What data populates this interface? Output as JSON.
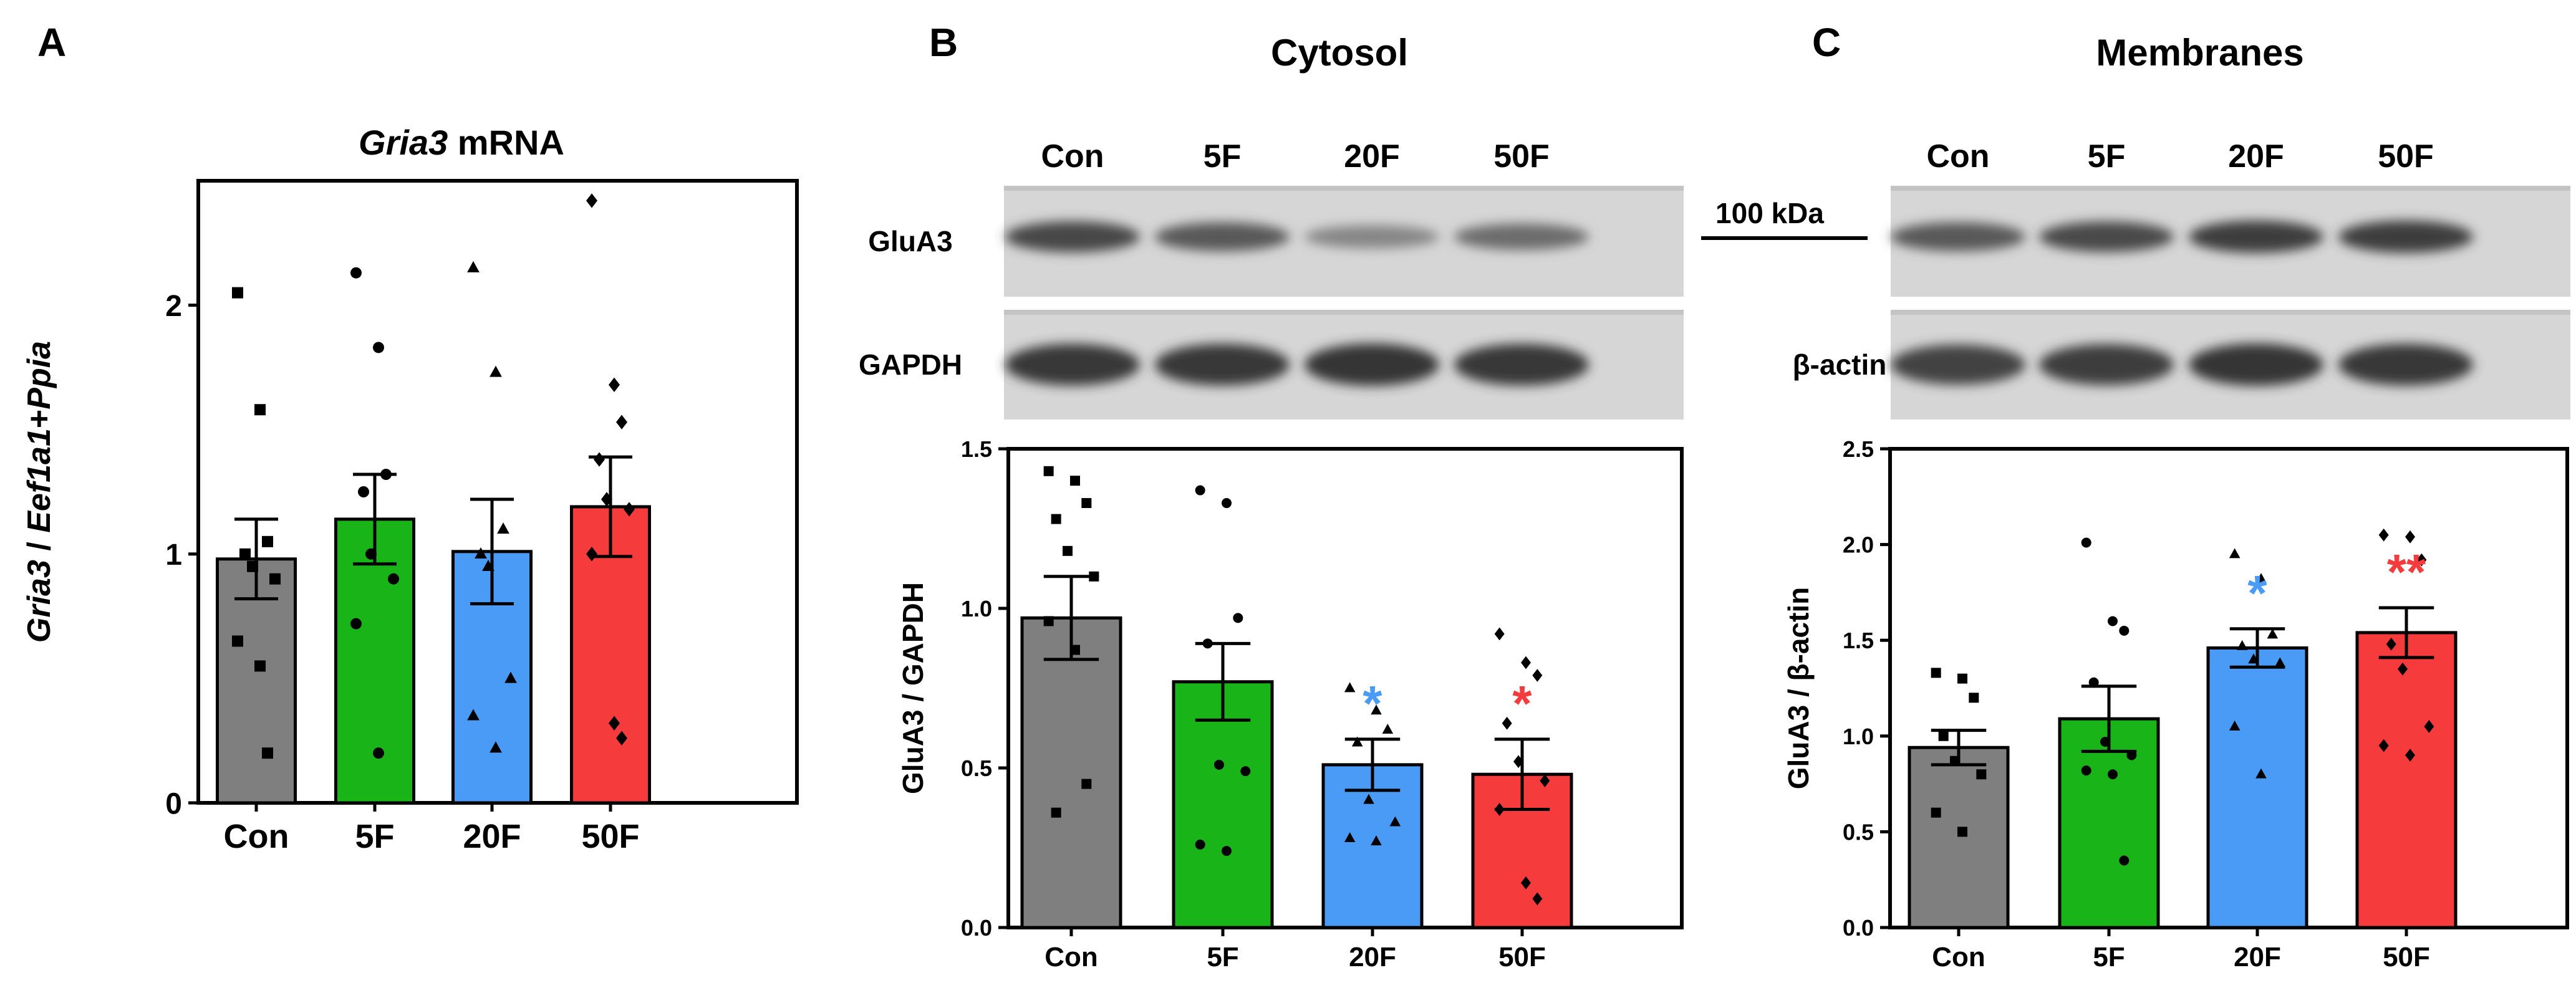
{
  "panels": {
    "a": {
      "letter": "A"
    },
    "b": {
      "letter": "B",
      "title": "Cytosol"
    },
    "c": {
      "letter": "C",
      "title": "Membranes"
    }
  },
  "blots": {
    "cytosol": {
      "lanes": [
        "Con",
        "5F",
        "20F",
        "50F"
      ],
      "rows": [
        {
          "label": "GluA3",
          "intensities": [
            0.82,
            0.72,
            0.45,
            0.6
          ]
        },
        {
          "label": "GAPDH",
          "intensities": [
            0.9,
            0.9,
            0.92,
            0.9
          ]
        }
      ]
    },
    "membranes": {
      "lanes": [
        "Con",
        "5F",
        "20F",
        "50F"
      ],
      "rows": [
        {
          "label": "",
          "intensities": [
            0.72,
            0.8,
            0.88,
            0.88
          ]
        },
        {
          "label": "β-actin",
          "intensities": [
            0.85,
            0.88,
            0.92,
            0.9
          ]
        }
      ]
    },
    "marker": {
      "label": "100 kDa"
    }
  },
  "colors": {
    "Con": "#7f7f7f",
    "5F": "#18b418",
    "20F": "#4a9bf5",
    "50F": "#f53b3b",
    "sig_blue": "#4a9bf5",
    "sig_red": "#f53b3b"
  },
  "chart_data": [
    {
      "id": "a",
      "type": "bar",
      "title": "Gria3 mRNA",
      "title_italic": "Gria3",
      "title_rest": " mRNA",
      "xlabel": "",
      "ylabel": "Gria3 / Eef1a1+Ppia",
      "ylabel_parts": [
        {
          "text": "Gria3",
          "italic": true
        },
        {
          "text": " / ",
          "italic": false
        },
        {
          "text": "Eef1a1",
          "italic": true
        },
        {
          "text": "+",
          "italic": false
        },
        {
          "text": "Ppia",
          "italic": true
        }
      ],
      "categories": [
        "Con",
        "5F",
        "20F",
        "50F"
      ],
      "ylim": [
        0,
        2.5
      ],
      "yticks": [
        0,
        1,
        2
      ],
      "ytick_labels": [
        "0",
        "1",
        "2"
      ],
      "values": [
        0.98,
        1.14,
        1.01,
        1.19
      ],
      "sem": [
        0.16,
        0.18,
        0.21,
        0.2
      ],
      "markers": [
        "square",
        "circle",
        "triangle",
        "diamond"
      ],
      "points": [
        [
          2.05,
          1.58,
          1.05,
          1.0,
          0.95,
          0.9,
          0.65,
          0.55,
          0.2
        ],
        [
          2.13,
          1.83,
          1.32,
          1.25,
          1.0,
          0.9,
          0.72,
          0.2
        ],
        [
          2.15,
          1.73,
          1.1,
          1.0,
          0.95,
          0.5,
          0.35,
          0.22
        ],
        [
          2.42,
          1.68,
          1.53,
          1.38,
          1.22,
          1.18,
          1.0,
          0.32,
          0.26
        ]
      ],
      "significance": [
        "",
        "",
        "",
        ""
      ]
    },
    {
      "id": "b",
      "type": "bar",
      "title": "",
      "xlabel": "",
      "ylabel": "GluA3 / GAPDH",
      "categories": [
        "Con",
        "5F",
        "20F",
        "50F"
      ],
      "ylim": [
        0,
        1.5
      ],
      "yticks": [
        0,
        0.5,
        1.0,
        1.5
      ],
      "ytick_labels": [
        "0.0",
        "0.5",
        "1.0",
        "1.5"
      ],
      "values": [
        0.97,
        0.77,
        0.51,
        0.48
      ],
      "sem": [
        0.13,
        0.12,
        0.08,
        0.11
      ],
      "markers": [
        "square",
        "circle",
        "triangle",
        "diamond"
      ],
      "points": [
        [
          1.43,
          1.4,
          1.33,
          1.28,
          1.18,
          1.1,
          0.96,
          0.87,
          0.45,
          0.36
        ],
        [
          1.37,
          1.33,
          0.97,
          0.89,
          0.51,
          0.49,
          0.26,
          0.24
        ],
        [
          0.75,
          0.68,
          0.62,
          0.58,
          0.4,
          0.33,
          0.28,
          0.27
        ],
        [
          0.92,
          0.83,
          0.79,
          0.64,
          0.52,
          0.46,
          0.37,
          0.14,
          0.09
        ]
      ],
      "significance": [
        "",
        "",
        "*",
        "*"
      ],
      "significance_colors": [
        "",
        "",
        "sig_blue",
        "sig_red"
      ]
    },
    {
      "id": "c",
      "type": "bar",
      "title": "",
      "xlabel": "",
      "ylabel": "GluA3 / β-actin",
      "categories": [
        "Con",
        "5F",
        "20F",
        "50F"
      ],
      "ylim": [
        0,
        2.5
      ],
      "yticks": [
        0,
        0.5,
        1.0,
        1.5,
        2.0,
        2.5
      ],
      "ytick_labels": [
        "0.0",
        "0.5",
        "1.0",
        "1.5",
        "2.0",
        "2.5"
      ],
      "values": [
        0.94,
        1.09,
        1.46,
        1.54
      ],
      "sem": [
        0.09,
        0.17,
        0.1,
        0.13
      ],
      "markers": [
        "square",
        "circle",
        "triangle",
        "diamond"
      ],
      "points": [
        [
          1.33,
          1.3,
          1.2,
          1.0,
          0.87,
          0.8,
          0.6,
          0.5
        ],
        [
          2.01,
          1.6,
          1.55,
          1.28,
          0.97,
          0.9,
          0.82,
          0.8,
          0.35
        ],
        [
          1.95,
          1.82,
          1.53,
          1.47,
          1.4,
          1.38,
          1.05,
          0.8
        ],
        [
          2.05,
          2.04,
          1.92,
          1.48,
          1.35,
          1.05,
          0.95,
          0.9
        ]
      ],
      "significance": [
        "",
        "",
        "*",
        "**"
      ],
      "significance_colors": [
        "",
        "",
        "sig_blue",
        "sig_red"
      ]
    }
  ]
}
